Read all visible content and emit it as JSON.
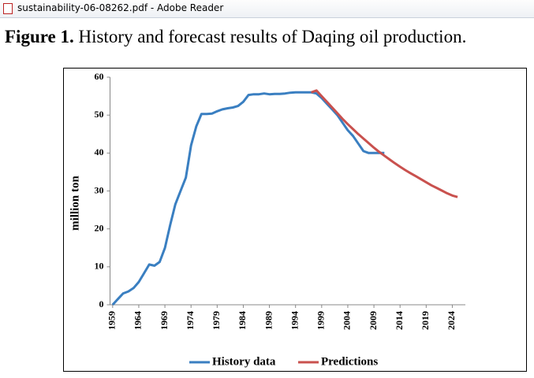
{
  "window": {
    "title": "sustainability-06-08262.pdf - Adobe Reader"
  },
  "caption": {
    "label": "Figure 1.",
    "text": "History and forecast results of Daqing oil production."
  },
  "chart_data": {
    "type": "line",
    "ylabel": "million ton",
    "xlim": [
      1958.5,
      2026.5
    ],
    "xticks": [
      1959,
      1964,
      1969,
      1974,
      1979,
      1984,
      1989,
      1994,
      1999,
      2004,
      2009,
      2014,
      2019,
      2024
    ],
    "ylim": [
      0,
      60
    ],
    "yticks": [
      0,
      10,
      20,
      30,
      40,
      50,
      60
    ],
    "grid": false,
    "legend": "bottom",
    "series": [
      {
        "name": "History data",
        "color": "#3a7fc1",
        "x": [
          1959,
          1960,
          1961,
          1962,
          1963,
          1964,
          1965,
          1966,
          1967,
          1968,
          1969,
          1970,
          1971,
          1972,
          1973,
          1974,
          1975,
          1976,
          1977,
          1978,
          1979,
          1980,
          1981,
          1982,
          1983,
          1984,
          1985,
          1986,
          1987,
          1988,
          1989,
          1990,
          1991,
          1992,
          1993,
          1994,
          1995,
          1996,
          1997,
          1998,
          1999,
          2000,
          2001,
          2002,
          2003,
          2004,
          2005,
          2006,
          2007,
          2008,
          2009,
          2010,
          2011
        ],
        "values": [
          0,
          1.5,
          3,
          3.5,
          4.4,
          6,
          8.3,
          10.6,
          10.3,
          11.3,
          15,
          21,
          26.5,
          30,
          33.5,
          42,
          47,
          50.3,
          50.3,
          50.4,
          51,
          51.5,
          51.8,
          52,
          52.4,
          53.5,
          55.3,
          55.5,
          55.5,
          55.7,
          55.5,
          55.6,
          55.6,
          55.7,
          55.9,
          56,
          56,
          56,
          56,
          55.7,
          54.5,
          53,
          51.5,
          50,
          48,
          46,
          44.5,
          42.5,
          40.5,
          40,
          40,
          40,
          40
        ]
      },
      {
        "name": "Predictions",
        "color": "#c9514e",
        "x": [
          1997,
          1998,
          1999,
          2000,
          2001,
          2002,
          2003,
          2004,
          2005,
          2006,
          2007,
          2008,
          2009,
          2010,
          2011,
          2012,
          2013,
          2014,
          2015,
          2016,
          2017,
          2018,
          2019,
          2020,
          2021,
          2022,
          2023,
          2024,
          2025
        ],
        "values": [
          56,
          56.5,
          55,
          53.5,
          52,
          50.5,
          49,
          47.6,
          46.3,
          45,
          43.8,
          42.6,
          41.4,
          40.3,
          39.3,
          38.3,
          37.3,
          36.4,
          35.5,
          34.7,
          33.9,
          33.1,
          32.3,
          31.5,
          30.8,
          30.1,
          29.4,
          28.8,
          28.4
        ]
      }
    ]
  }
}
